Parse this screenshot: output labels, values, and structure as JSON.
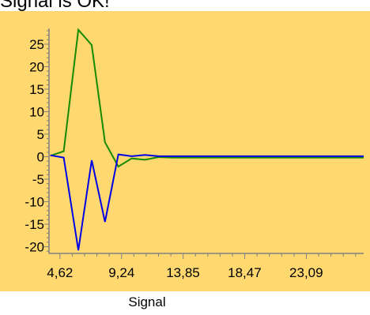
{
  "chart_data": {
    "type": "line",
    "title": "Signal is OK!",
    "xlabel": "Signal",
    "ylabel": "",
    "xlim": [
      3.8,
      27.4
    ],
    "ylim": [
      -21.5,
      28.5
    ],
    "grid": false,
    "x_ticks": [
      4.62,
      9.24,
      13.85,
      18.47,
      23.09
    ],
    "x_tick_labels": [
      "4,62",
      "9,24",
      "13,85",
      "18,47",
      "23,09"
    ],
    "y_ticks": [
      25,
      20,
      15,
      10,
      5,
      0,
      -5,
      -10,
      -15,
      -20
    ],
    "y_tick_labels": [
      "25",
      "20",
      "15",
      "10",
      "5",
      "0",
      "-5",
      "-10",
      "-15",
      "-20"
    ],
    "colors": {
      "background": "#FFD870",
      "axis": "#808080",
      "green": "#168A00",
      "blue": "#0000E6"
    },
    "series": [
      {
        "color": "#168A00",
        "x": [
          3.9,
          4.9,
          6.0,
          7.0,
          8.0,
          9.0,
          10.0,
          11.0,
          12.0,
          13.0,
          14.0,
          15.0,
          16.0,
          17.0,
          18.0,
          19.0,
          20.0,
          21.0,
          22.0,
          23.0,
          24.0,
          25.0,
          26.0,
          27.4
        ],
        "values": [
          0.2,
          1.2,
          28.2,
          24.8,
          3.2,
          -2.2,
          -0.4,
          -0.7,
          -0.1,
          -0.2,
          -0.2,
          -0.2,
          -0.2,
          -0.2,
          -0.2,
          -0.2,
          -0.2,
          -0.2,
          -0.2,
          -0.2,
          -0.2,
          -0.2,
          -0.2,
          -0.2
        ]
      },
      {
        "color": "#0000E6",
        "x": [
          3.9,
          4.9,
          6.0,
          7.0,
          8.0,
          9.0,
          10.0,
          11.0,
          12.0,
          13.0,
          14.0,
          15.0,
          16.0,
          17.0,
          18.0,
          19.0,
          20.0,
          21.0,
          22.0,
          23.0,
          24.0,
          25.0,
          26.0,
          27.4
        ],
        "values": [
          0.3,
          -0.2,
          -20.8,
          -0.8,
          -14.5,
          0.5,
          0.1,
          0.4,
          0.1,
          0.1,
          0.1,
          0.1,
          0.1,
          0.1,
          0.1,
          0.1,
          0.1,
          0.1,
          0.1,
          0.1,
          0.1,
          0.1,
          0.1,
          0.1
        ]
      }
    ]
  }
}
